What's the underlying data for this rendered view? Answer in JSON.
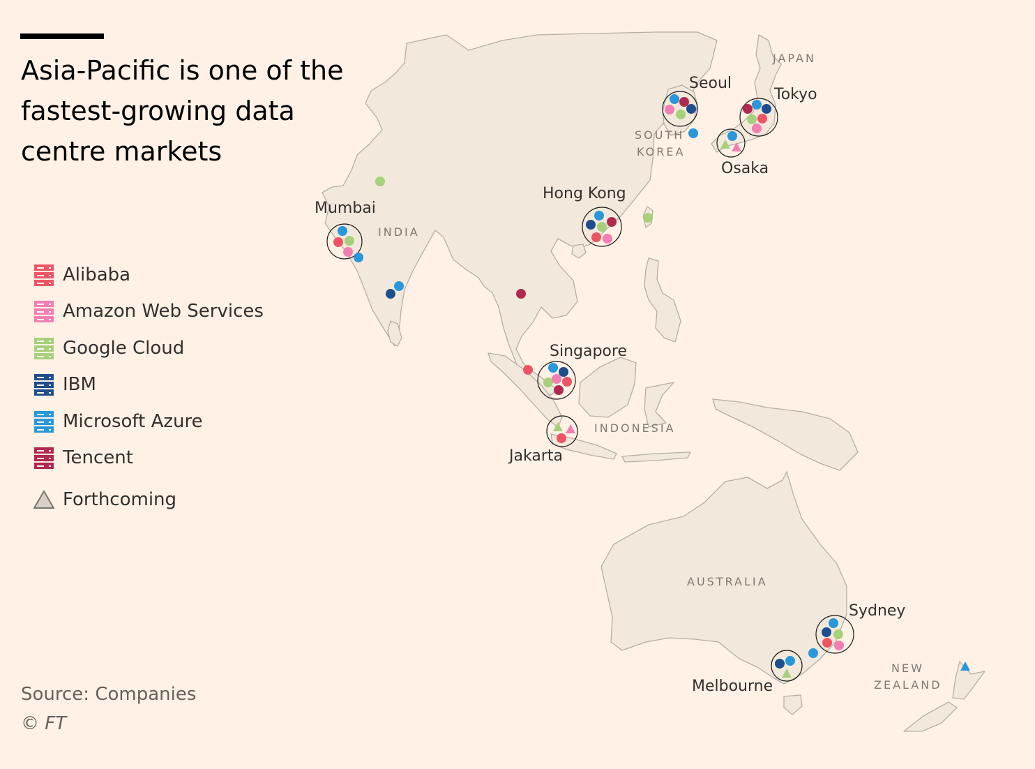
{
  "title": "Asia-Pacific is one of the\nfastest-growing data\ncentre markets",
  "colors": {
    "alibaba": "#ed5565",
    "aws": "#f37eb1",
    "google": "#a6d07a",
    "ibm": "#1f4e8c",
    "azure": "#2997d9",
    "tencent": "#b1294e",
    "forthcoming": "#7a746e",
    "land": "#f2e9dc",
    "border": "#b6aea6",
    "background": "#fff1e5"
  },
  "legend": {
    "items": [
      {
        "key": "alibaba",
        "label": "Alibaba",
        "icon": "server-icon"
      },
      {
        "key": "aws",
        "label": "Amazon Web Services",
        "icon": "server-icon"
      },
      {
        "key": "google",
        "label": "Google Cloud",
        "icon": "server-icon"
      },
      {
        "key": "ibm",
        "label": "IBM",
        "icon": "server-icon"
      },
      {
        "key": "azure",
        "label": "Microsoft Azure",
        "icon": "server-icon"
      },
      {
        "key": "tencent",
        "label": "Tencent",
        "icon": "server-icon"
      }
    ],
    "forthcoming_label": "Forthcoming"
  },
  "cities": {
    "seoul": {
      "name": "Seoul",
      "providers": [
        "azure",
        "tencent",
        "aws",
        "ibm",
        "google"
      ]
    },
    "tokyo": {
      "name": "Tokyo",
      "providers": [
        "tencent",
        "azure",
        "ibm",
        "google",
        "alibaba",
        "aws"
      ]
    },
    "osaka": {
      "name": "Osaka",
      "providers": [
        "azure"
      ],
      "forthcoming": [
        "google",
        "aws"
      ]
    },
    "hong_kong": {
      "name": "Hong Kong",
      "providers": [
        "azure",
        "ibm",
        "google",
        "tencent",
        "alibaba",
        "aws"
      ]
    },
    "mumbai": {
      "name": "Mumbai",
      "providers": [
        "azure",
        "alibaba",
        "google",
        "aws"
      ]
    },
    "singapore": {
      "name": "Singapore",
      "providers": [
        "azure",
        "ibm",
        "google",
        "aws",
        "alibaba",
        "tencent"
      ]
    },
    "jakarta": {
      "name": "Jakarta",
      "providers": [
        "alibaba"
      ],
      "forthcoming": [
        "google",
        "aws"
      ]
    },
    "sydney": {
      "name": "Sydney",
      "providers": [
        "azure",
        "ibm",
        "google",
        "alibaba",
        "aws"
      ]
    },
    "melbourne": {
      "name": "Melbourne",
      "providers": [
        "ibm",
        "azure"
      ],
      "forthcoming": [
        "google"
      ]
    }
  },
  "other_sites": [
    {
      "provider": "azure"
    },
    {
      "provider": "google"
    },
    {
      "provider": "azure"
    },
    {
      "provider": "ibm"
    },
    {
      "provider": "azure"
    },
    {
      "provider": "tencent"
    },
    {
      "provider": "google"
    },
    {
      "provider": "alibaba"
    },
    {
      "provider": "azure"
    },
    {
      "provider": "azure",
      "forthcoming": true
    }
  ],
  "countries": {
    "japan": "JAPAN",
    "south_korea_1": "SOUTH",
    "south_korea_2": "KOREA",
    "india": "INDIA",
    "indonesia": "INDONESIA",
    "australia": "AUSTRALIA",
    "new_zealand_1": "NEW",
    "new_zealand_2": "ZEALAND"
  },
  "source": "Source: Companies",
  "copyright": "© FT"
}
